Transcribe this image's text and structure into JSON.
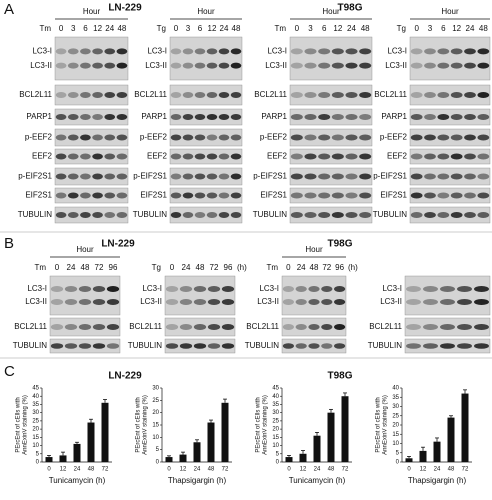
{
  "figure": {
    "A": {
      "label": "A",
      "cells": [
        {
          "name": "LN-229",
          "blots": [
            {
              "hour": "Hour",
              "agent": "Tm",
              "times": [
                "0",
                "3",
                "6",
                "12",
                "24",
                "48"
              ],
              "rows": [
                [
                  "LC3-I",
                  "LC3-II"
                ],
                [
                  "BCL2L11"
                ],
                [
                  "PARP1"
                ],
                [
                  "p-EEF2"
                ],
                [
                  "EEF2"
                ],
                [
                  "p-EIF2S1"
                ],
                [
                  "EIF2S1"
                ],
                [
                  "TUBULIN"
                ]
              ]
            },
            {
              "hour": "Hour",
              "agent": "Tg",
              "times": [
                "0",
                "3",
                "6",
                "12",
                "24",
                "48"
              ],
              "rows": [
                [
                  "LC3-I",
                  "LC3-II"
                ],
                [
                  "BCL2L11"
                ],
                [
                  "PARP1"
                ],
                [
                  "p-EEF2"
                ],
                [
                  "EEF2"
                ],
                [
                  "p-EIF2S1"
                ],
                [
                  "EIF2S1"
                ],
                [
                  "TUBULIN"
                ]
              ]
            }
          ]
        },
        {
          "name": "T98G",
          "blots": [
            {
              "hour": "Hour",
              "agent": "Tm",
              "times": [
                "0",
                "3",
                "6",
                "12",
                "24",
                "48"
              ],
              "rows": [
                [
                  "LC3-I",
                  "LC3-II"
                ],
                [
                  "BCL2L11"
                ],
                [
                  "PARP1"
                ],
                [
                  "p-EEF2"
                ],
                [
                  "EEF2"
                ],
                [
                  "p-EIF2S1"
                ],
                [
                  "EIF2S1"
                ],
                [
                  "TUBULIN"
                ]
              ]
            },
            {
              "hour": "Hour",
              "agent": "Tg",
              "times": [
                "0",
                "3",
                "6",
                "12",
                "24",
                "48"
              ],
              "rows": [
                [
                  "LC3-I",
                  "LC3-II"
                ],
                [
                  "BCL2L11"
                ],
                [
                  "PARP1"
                ],
                [
                  "p-EEF2"
                ],
                [
                  "EEF2"
                ],
                [
                  "p-EIF2S1"
                ],
                [
                  "EIF2S1"
                ],
                [
                  "TUBULIN"
                ]
              ]
            }
          ]
        }
      ]
    },
    "B": {
      "label": "B",
      "cells": [
        {
          "name": "LN-229",
          "blots": [
            {
              "hour": "Hour",
              "agent": "Tm",
              "times": [
                "0",
                "24",
                "48",
                "72",
                "96"
              ],
              "rows": [
                [
                  "LC3-I",
                  "LC3-II"
                ],
                [
                  "BCL2L11"
                ],
                [
                  "TUBULIN"
                ]
              ]
            },
            {
              "agent": "Tg",
              "times": [
                "0",
                "24",
                "48",
                "72",
                "96"
              ],
              "unit": "(h)",
              "rows": [
                [
                  "LC3-I",
                  "LC3-II"
                ],
                [
                  "BCL2L11"
                ],
                [
                  "TUBULIN"
                ]
              ]
            }
          ]
        },
        {
          "name": "T98G",
          "blots": [
            {
              "hour": "Hour",
              "agent": "Tm",
              "times": [
                "0",
                "24",
                "48",
                "72",
                "96"
              ],
              "unit": "(h)",
              "rows": [
                [
                  "LC3-I",
                  "LC3-II"
                ],
                [
                  "BCL2L11"
                ],
                [
                  "TUBULIN"
                ]
              ]
            },
            {
              "rows": [
                [
                  "LC3-I",
                  "LC3-II"
                ],
                [
                  "BCL2L11"
                ],
                [
                  "TUBULIN"
                ]
              ]
            }
          ]
        }
      ]
    },
    "C": {
      "label": "C",
      "cells": [
        "LN-229",
        "T98G"
      ]
    }
  },
  "chart_data": [
    {
      "type": "bar",
      "categories": [
        "0",
        "12",
        "24",
        "48",
        "72"
      ],
      "values": [
        3,
        4,
        11,
        24,
        36
      ],
      "errors": [
        1,
        2,
        1,
        2,
        2
      ],
      "color": "#111111",
      "ylim": [
        0,
        45
      ],
      "yticks": [
        0,
        5,
        10,
        15,
        20,
        25,
        30,
        35,
        40,
        45
      ],
      "xlabel": "Tunicamycin (h)",
      "ylabel": [
        "PErcEnt of cElls with",
        "AnnExinV staining (%)"
      ]
    },
    {
      "type": "bar",
      "categories": [
        "0",
        "12",
        "24",
        "48",
        "72"
      ],
      "values": [
        2,
        3,
        8,
        16,
        24
      ],
      "errors": [
        0.5,
        1,
        1,
        1,
        1.5
      ],
      "color": "#111111",
      "ylim": [
        0,
        30
      ],
      "yticks": [
        0,
        5,
        10,
        15,
        20,
        25,
        30
      ],
      "xlabel": "Thapsigargin (h)",
      "ylabel": [
        "PErcEnt of cElls with",
        "AnnExinV staining (%)"
      ]
    },
    {
      "type": "bar",
      "categories": [
        "0",
        "12",
        "24",
        "48",
        "72"
      ],
      "values": [
        3,
        5,
        16,
        30,
        40
      ],
      "errors": [
        1,
        2,
        2,
        2,
        2
      ],
      "color": "#111111",
      "ylim": [
        0,
        45
      ],
      "yticks": [
        0,
        5,
        10,
        15,
        20,
        25,
        30,
        35,
        40,
        45
      ],
      "xlabel": "Tunicamycin (h)",
      "ylabel": [
        "PErcEnt of cElls with",
        "AnnExinV staining (%)"
      ]
    },
    {
      "type": "bar",
      "categories": [
        "0",
        "12",
        "24",
        "48",
        "72"
      ],
      "values": [
        2,
        6,
        11,
        24,
        37
      ],
      "errors": [
        1,
        2,
        2,
        1,
        2
      ],
      "color": "#111111",
      "ylim": [
        0,
        40
      ],
      "yticks": [
        0,
        5,
        10,
        15,
        20,
        25,
        30,
        35,
        40
      ],
      "xlabel": "Thapsigargin (h)",
      "ylabel": [
        "PErcEnt of cElls with",
        "AnnExinV staining (%)"
      ]
    }
  ]
}
